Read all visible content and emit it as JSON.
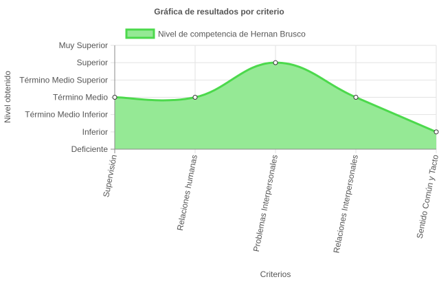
{
  "chart_data": {
    "type": "area",
    "title": "Gráfica de resultados por criterio",
    "xlabel": "Criterios",
    "ylabel": "Nivel obtenido",
    "categories": [
      "Supervisión",
      "Relaciones humanas",
      "Problemas Interpersonales",
      "Relaciones Interpersonales",
      "Sentido Común y Tacto"
    ],
    "y_levels": [
      "Deficiente",
      "Inferior",
      "Término Medio Inferior",
      "Término Medio",
      "Término Medio Superior",
      "Superior",
      "Muy Superior"
    ],
    "ylim": [
      0,
      6
    ],
    "grid": true,
    "legend_position": "top",
    "series": [
      {
        "name": "Nivel de competencia de Hernan Brusco",
        "values": [
          3,
          3,
          5,
          3,
          1
        ],
        "line_color": "#4cd94c",
        "fill_color": "#95e995"
      }
    ],
    "colors": {
      "grid": "#e2e2e2",
      "axis": "#8a8a8a",
      "text": "#555555",
      "title": "#555555",
      "point_fill": "#ffffff",
      "point_stroke": "#333333"
    }
  }
}
